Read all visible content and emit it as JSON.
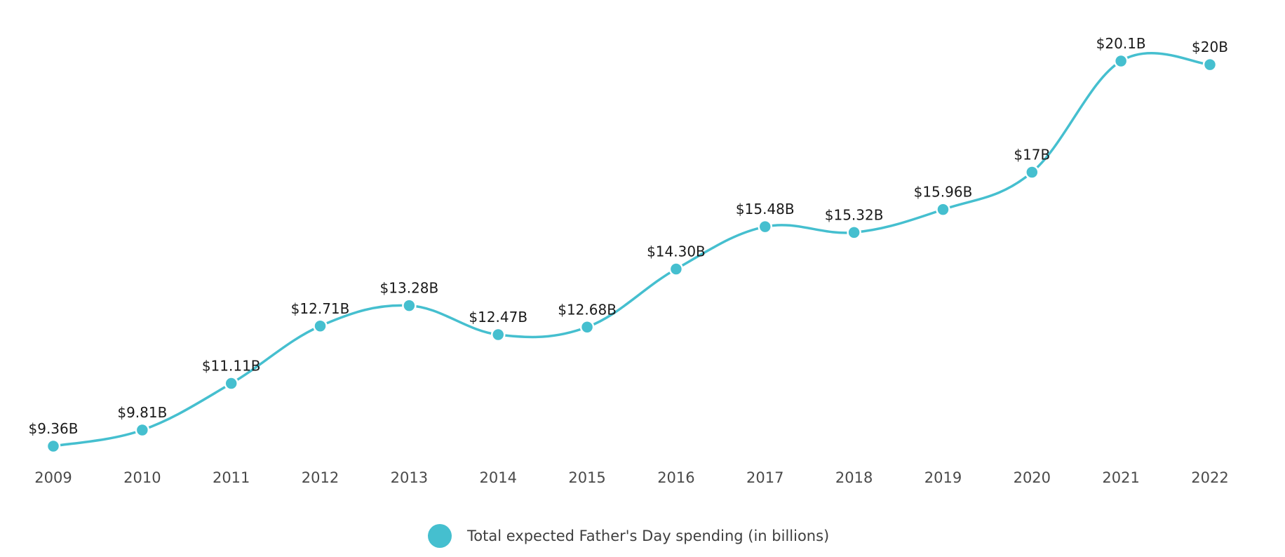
{
  "chart_data": {
    "type": "line",
    "title": "",
    "xlabel": "",
    "ylabel": "",
    "categories": [
      "2009",
      "2010",
      "2011",
      "2012",
      "2013",
      "2014",
      "2015",
      "2016",
      "2017",
      "2018",
      "2019",
      "2020",
      "2021",
      "2022"
    ],
    "series": [
      {
        "name": "Total expected Father's Day spending (in billions)",
        "values": [
          9.36,
          9.81,
          11.11,
          12.71,
          13.28,
          12.47,
          12.68,
          14.3,
          15.48,
          15.32,
          15.96,
          17.0,
          20.1,
          20.0
        ],
        "data_labels": [
          "$9.36B",
          "$9.81B",
          "$11.11B",
          "$12.71B",
          "$13.28B",
          "$12.47B",
          "$12.68B",
          "$14.30B",
          "$15.48B",
          "$15.32B",
          "$15.96B",
          "$17B",
          "$20.1B",
          "$20B"
        ],
        "color": "#45bfcf"
      }
    ],
    "ylim": [
      9.36,
      20.1
    ],
    "grid": false,
    "legend_position": "bottom-center"
  }
}
